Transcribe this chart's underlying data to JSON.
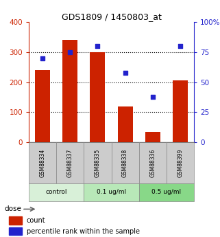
{
  "title": "GDS1809 / 1450803_at",
  "categories": [
    "GSM88334",
    "GSM88337",
    "GSM88335",
    "GSM88338",
    "GSM88336",
    "GSM88399"
  ],
  "bar_values": [
    240,
    340,
    300,
    120,
    35,
    205
  ],
  "scatter_values": [
    70,
    75,
    80,
    58,
    38,
    80
  ],
  "bar_color": "#cc2200",
  "scatter_color": "#2222cc",
  "left_ylim": [
    0,
    400
  ],
  "right_ylim": [
    0,
    100
  ],
  "left_yticks": [
    0,
    100,
    200,
    300,
    400
  ],
  "right_yticks": [
    0,
    25,
    50,
    75,
    100
  ],
  "right_yticklabels": [
    "0",
    "25",
    "50",
    "75",
    "100%"
  ],
  "left_tick_color": "#cc2200",
  "right_tick_color": "#2222cc",
  "dose_labels": [
    "control",
    "0.1 ug/ml",
    "0.5 ug/ml"
  ],
  "dose_groups": [
    2,
    2,
    2
  ],
  "dose_colors_gsm": "#cccccc",
  "dose_colors": [
    "#d8f0d8",
    "#b8e8b8",
    "#88d888"
  ],
  "dose_label_text": "dose",
  "legend_count": "count",
  "legend_percentile": "percentile rank within the sample",
  "bar_width": 0.55
}
